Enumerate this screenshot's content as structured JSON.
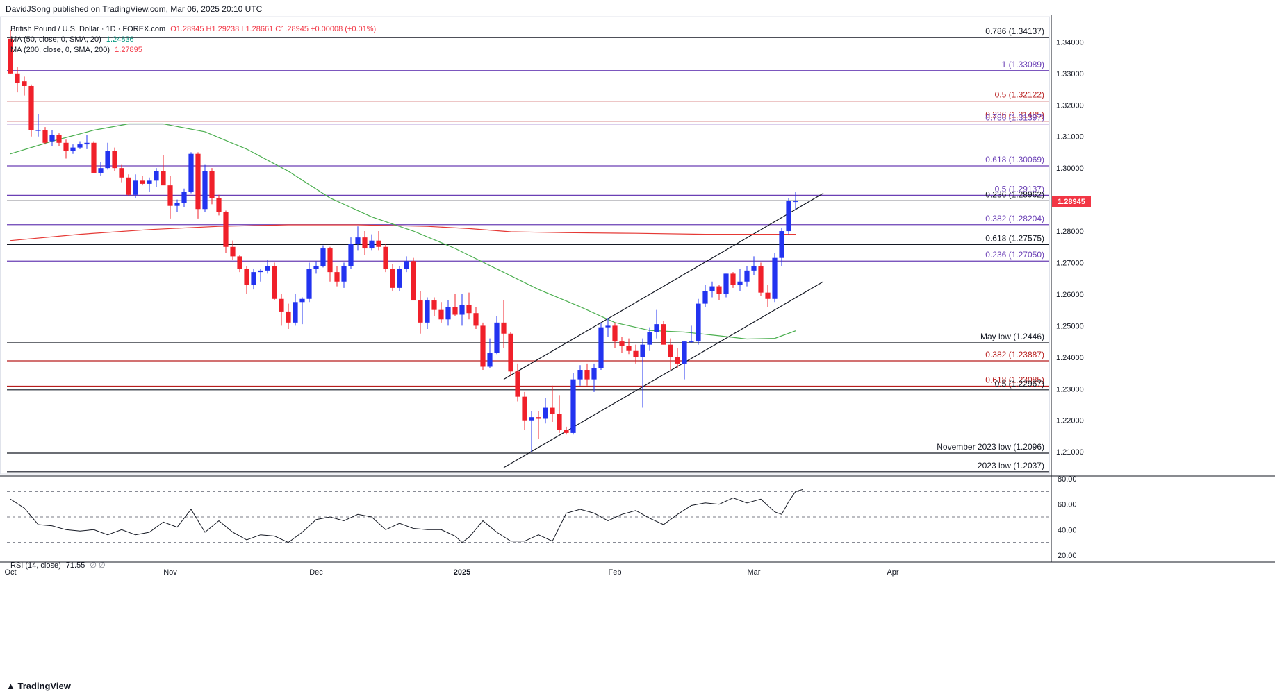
{
  "header": {
    "publisher": "DavidJSong published on TradingView.com, Mar 06, 2025 20:10 UTC"
  },
  "legend": {
    "symbol": "British Pound / U.S. Dollar · 1D · FOREX.com",
    "ohlc": "O1.28945 H1.29238 L1.28661 C1.28945 +0.00008 (+0.01%)",
    "ma50_label": "MA (50, close, 0, SMA, 20)",
    "ma50_value": "1.24836",
    "ma200_label": "MA (200, close, 0, SMA, 200)",
    "ma200_value": "1.27895",
    "rsi_label": "RSI (14, close)",
    "rsi_value": "71.55",
    "rsi_extra": "∅ ∅"
  },
  "colors": {
    "up": "#2233f0",
    "down": "#f0202a",
    "ma50": "#4caf50",
    "ma200": "#e53935",
    "level_black": "#131722",
    "level_purple": "#6a3fb5",
    "level_red": "#b71c1c",
    "price_tag": "#f23645"
  },
  "footer": {
    "brand": "TradingView"
  },
  "chart_data": {
    "type": "candlestick",
    "title": "",
    "price_axis": {
      "ylim": [
        1.203,
        1.348
      ],
      "ticks": [
        "1.34000",
        "1.33000",
        "1.32000",
        "1.31000",
        "1.30000",
        "1.29000",
        "1.28000",
        "1.27000",
        "1.26000",
        "1.25000",
        "1.24000",
        "1.23000",
        "1.22000",
        "1.21000"
      ],
      "current_price": "1.28945"
    },
    "time_axis": {
      "labels": [
        {
          "label": "Oct",
          "index": 0
        },
        {
          "label": "Nov",
          "index": 23
        },
        {
          "label": "Dec",
          "index": 44
        },
        {
          "label": "2025",
          "index": 65
        },
        {
          "label": "Feb",
          "index": 87
        },
        {
          "label": "Mar",
          "index": 107
        },
        {
          "label": "Apr",
          "index": 127
        }
      ],
      "total_bars_span": 150
    },
    "levels": [
      {
        "label": "0.786 (1.34137)",
        "value": 1.34137,
        "color": "black"
      },
      {
        "label": "1 (1.33089)",
        "value": 1.33089,
        "color": "purple"
      },
      {
        "label": "0.5 (1.32122)",
        "value": 1.32122,
        "color": "red"
      },
      {
        "label": "0.236 (1.31485)",
        "value": 1.31485,
        "color": "red"
      },
      {
        "label": "0.786 (1.31397)",
        "value": 1.31397,
        "color": "purple"
      },
      {
        "label": "0.618 (1.30069)",
        "value": 1.30069,
        "color": "purple"
      },
      {
        "label": "0.5 (1.29137)",
        "value": 1.29137,
        "color": "purple"
      },
      {
        "label": "0.236 (1.28962)",
        "value": 1.28962,
        "color": "black"
      },
      {
        "label": "0.382 (1.28204)",
        "value": 1.28204,
        "color": "purple"
      },
      {
        "label": "0.618 (1.27575)",
        "value": 1.27575,
        "color": "black"
      },
      {
        "label": "0.236 (1.27050)",
        "value": 1.2705,
        "color": "purple"
      },
      {
        "label": "May low (1.2446)",
        "value": 1.2446,
        "color": "black"
      },
      {
        "label": "0.382 (1.23887)",
        "value": 1.23887,
        "color": "red"
      },
      {
        "label": "0.618 (1.23085)",
        "value": 1.23085,
        "color": "red"
      },
      {
        "label": "0.5 (1.22967)",
        "value": 1.22967,
        "color": "black"
      },
      {
        "label": "November 2023 low (1.2096)",
        "value": 1.2096,
        "color": "black"
      },
      {
        "label": "2023 low (1.2037)",
        "value": 1.2037,
        "color": "black"
      }
    ],
    "candles": [
      [
        1.341,
        1.3438,
        1.3298,
        1.33
      ],
      [
        1.33,
        1.332,
        1.324,
        1.327
      ],
      [
        1.3275,
        1.329,
        1.323,
        1.326
      ],
      [
        1.326,
        1.3265,
        1.31,
        1.312
      ],
      [
        1.312,
        1.317,
        1.31,
        1.312
      ],
      [
        1.312,
        1.313,
        1.3075,
        1.308
      ],
      [
        1.3085,
        1.312,
        1.307,
        1.3105
      ],
      [
        1.3105,
        1.311,
        1.307,
        1.308
      ],
      [
        1.308,
        1.309,
        1.303,
        1.3055
      ],
      [
        1.3055,
        1.3075,
        1.3045,
        1.3065
      ],
      [
        1.3065,
        1.3085,
        1.306,
        1.3075
      ],
      [
        1.3075,
        1.3105,
        1.306,
        1.308
      ],
      [
        1.308,
        1.3085,
        1.299,
        1.2985
      ],
      [
        1.2985,
        1.302,
        1.2975,
        1.3
      ],
      [
        1.3,
        1.308,
        1.2995,
        1.3055
      ],
      [
        1.3055,
        1.3065,
        1.299,
        1.3
      ],
      [
        1.3,
        1.301,
        1.2955,
        1.297
      ],
      [
        1.297,
        1.298,
        1.291,
        1.2915
      ],
      [
        1.2915,
        1.298,
        1.2905,
        1.296
      ],
      [
        1.296,
        1.2975,
        1.2945,
        1.295
      ],
      [
        1.295,
        1.297,
        1.2925,
        1.296
      ],
      [
        1.296,
        1.3,
        1.294,
        1.299
      ],
      [
        1.299,
        1.304,
        1.295,
        1.2945
      ],
      [
        1.2945,
        1.2975,
        1.284,
        1.288
      ],
      [
        1.288,
        1.29,
        1.286,
        1.289
      ],
      [
        1.289,
        1.2935,
        1.2875,
        1.2925
      ],
      [
        1.2925,
        1.305,
        1.292,
        1.3045
      ],
      [
        1.3045,
        1.305,
        1.284,
        1.287
      ],
      [
        1.287,
        1.301,
        1.286,
        1.299
      ],
      [
        1.299,
        1.3,
        1.2885,
        1.2905
      ],
      [
        1.2905,
        1.2915,
        1.285,
        1.286
      ],
      [
        1.286,
        1.2865,
        1.273,
        1.275
      ],
      [
        1.275,
        1.277,
        1.271,
        1.272
      ],
      [
        1.272,
        1.2725,
        1.267,
        1.268
      ],
      [
        1.268,
        1.269,
        1.26,
        1.263
      ],
      [
        1.263,
        1.268,
        1.2615,
        1.267
      ],
      [
        1.267,
        1.268,
        1.264,
        1.2675
      ],
      [
        1.2675,
        1.271,
        1.2665,
        1.269
      ],
      [
        1.269,
        1.27,
        1.258,
        1.2585
      ],
      [
        1.2585,
        1.26,
        1.25,
        1.2545
      ],
      [
        1.2545,
        1.257,
        1.249,
        1.251
      ],
      [
        1.251,
        1.26,
        1.25,
        1.2575
      ],
      [
        1.2575,
        1.259,
        1.2505,
        1.2585
      ],
      [
        1.2585,
        1.27,
        1.2575,
        1.268
      ],
      [
        1.268,
        1.2705,
        1.2665,
        1.269
      ],
      [
        1.269,
        1.2755,
        1.2685,
        1.2745
      ],
      [
        1.2745,
        1.275,
        1.264,
        1.267
      ],
      [
        1.267,
        1.269,
        1.2625,
        1.264
      ],
      [
        1.264,
        1.27,
        1.262,
        1.269
      ],
      [
        1.269,
        1.278,
        1.268,
        1.276
      ],
      [
        1.276,
        1.2815,
        1.274,
        1.278
      ],
      [
        1.278,
        1.28,
        1.2725,
        1.2745
      ],
      [
        1.2745,
        1.279,
        1.274,
        1.277
      ],
      [
        1.277,
        1.28,
        1.274,
        1.275
      ],
      [
        1.275,
        1.276,
        1.267,
        1.268
      ],
      [
        1.268,
        1.2695,
        1.261,
        1.262
      ],
      [
        1.262,
        1.269,
        1.261,
        1.268
      ],
      [
        1.268,
        1.272,
        1.267,
        1.2705
      ],
      [
        1.2705,
        1.2715,
        1.258,
        1.258
      ],
      [
        1.258,
        1.261,
        1.2475,
        1.251
      ],
      [
        1.251,
        1.259,
        1.249,
        1.258
      ],
      [
        1.258,
        1.259,
        1.253,
        1.255
      ],
      [
        1.255,
        1.2575,
        1.251,
        1.252
      ],
      [
        1.252,
        1.258,
        1.25,
        1.256
      ],
      [
        1.256,
        1.26,
        1.253,
        1.2535
      ],
      [
        1.2535,
        1.26,
        1.25,
        1.2565
      ],
      [
        1.2565,
        1.2605,
        1.252,
        1.254
      ],
      [
        1.254,
        1.256,
        1.249,
        1.25
      ],
      [
        1.25,
        1.251,
        1.236,
        1.237
      ],
      [
        1.237,
        1.246,
        1.2365,
        1.2415
      ],
      [
        1.2415,
        1.253,
        1.241,
        1.251
      ],
      [
        1.251,
        1.258,
        1.243,
        1.2475
      ],
      [
        1.2475,
        1.248,
        1.234,
        1.2355
      ],
      [
        1.2355,
        1.238,
        1.226,
        1.2275
      ],
      [
        1.2275,
        1.229,
        1.217,
        1.22
      ],
      [
        1.22,
        1.223,
        1.21,
        1.221
      ],
      [
        1.221,
        1.223,
        1.214,
        1.2205
      ],
      [
        1.2205,
        1.227,
        1.219,
        1.224
      ],
      [
        1.224,
        1.231,
        1.2195,
        1.222
      ],
      [
        1.222,
        1.228,
        1.216,
        1.217
      ],
      [
        1.217,
        1.218,
        1.2155,
        1.216
      ],
      [
        1.216,
        1.235,
        1.2155,
        1.233
      ],
      [
        1.233,
        1.2375,
        1.231,
        1.236
      ],
      [
        1.236,
        1.238,
        1.231,
        1.233
      ],
      [
        1.233,
        1.238,
        1.229,
        1.2365
      ],
      [
        1.2365,
        1.251,
        1.236,
        1.2495
      ],
      [
        1.2495,
        1.2525,
        1.2465,
        1.25
      ],
      [
        1.25,
        1.251,
        1.243,
        1.245
      ],
      [
        1.245,
        1.2465,
        1.2415,
        1.2435
      ],
      [
        1.2435,
        1.246,
        1.241,
        1.242
      ],
      [
        1.242,
        1.244,
        1.238,
        1.24
      ],
      [
        1.24,
        1.246,
        1.224,
        1.244
      ],
      [
        1.244,
        1.2495,
        1.242,
        1.248
      ],
      [
        1.248,
        1.255,
        1.246,
        1.2505
      ],
      [
        1.2505,
        1.2515,
        1.244,
        1.244
      ],
      [
        1.244,
        1.246,
        1.236,
        1.24
      ],
      [
        1.24,
        1.243,
        1.2365,
        1.238
      ],
      [
        1.238,
        1.245,
        1.233,
        1.245
      ],
      [
        1.245,
        1.25,
        1.2445,
        1.245
      ],
      [
        1.245,
        1.2585,
        1.244,
        1.257
      ],
      [
        1.257,
        1.263,
        1.256,
        1.261
      ],
      [
        1.261,
        1.264,
        1.259,
        1.2625
      ],
      [
        1.2625,
        1.263,
        1.258,
        1.26
      ],
      [
        1.26,
        1.2665,
        1.259,
        1.2665
      ],
      [
        1.2665,
        1.267,
        1.262,
        1.263
      ],
      [
        1.263,
        1.268,
        1.261,
        1.264
      ],
      [
        1.264,
        1.269,
        1.2625,
        1.2675
      ],
      [
        1.2675,
        1.272,
        1.266,
        1.269
      ],
      [
        1.269,
        1.27,
        1.2595,
        1.2605
      ],
      [
        1.2605,
        1.263,
        1.256,
        1.2585
      ],
      [
        1.2585,
        1.273,
        1.2575,
        1.2715
      ],
      [
        1.2715,
        1.281,
        1.269,
        1.28
      ],
      [
        1.28,
        1.2905,
        1.279,
        1.2895
      ],
      [
        1.28945,
        1.29238,
        1.28661,
        1.28945
      ]
    ],
    "ma50": [
      [
        0,
        1.3045
      ],
      [
        6,
        1.3085
      ],
      [
        12,
        1.312
      ],
      [
        17,
        1.314
      ],
      [
        22,
        1.314
      ],
      [
        28,
        1.3115
      ],
      [
        34,
        1.306
      ],
      [
        40,
        1.299
      ],
      [
        46,
        1.2905
      ],
      [
        52,
        1.2845
      ],
      [
        58,
        1.28
      ],
      [
        64,
        1.2745
      ],
      [
        70,
        1.268
      ],
      [
        76,
        1.2615
      ],
      [
        82,
        1.256
      ],
      [
        87,
        1.251
      ],
      [
        92,
        1.2485
      ],
      [
        97,
        1.248
      ],
      [
        102,
        1.2468
      ],
      [
        106,
        1.2458
      ],
      [
        110,
        1.246
      ],
      [
        113,
        1.2484
      ]
    ],
    "ma200": [
      [
        0,
        1.277
      ],
      [
        10,
        1.279
      ],
      [
        20,
        1.2805
      ],
      [
        30,
        1.2815
      ],
      [
        40,
        1.282
      ],
      [
        50,
        1.282
      ],
      [
        60,
        1.2815
      ],
      [
        66,
        1.2808
      ],
      [
        72,
        1.2798
      ],
      [
        80,
        1.2795
      ],
      [
        90,
        1.2793
      ],
      [
        100,
        1.279
      ],
      [
        113,
        1.279
      ]
    ],
    "trendlines": [
      {
        "from": [
          71,
          1.233
        ],
        "to": [
          117,
          1.292
        ]
      },
      {
        "from": [
          71,
          1.205
        ],
        "to": [
          117,
          1.264
        ]
      }
    ],
    "rsi": {
      "ylim": [
        20,
        80
      ],
      "ticks": [
        "80.00",
        "60.00",
        "40.00",
        "20.00"
      ],
      "guides": [
        70,
        50,
        30
      ],
      "values": [
        [
          0,
          64
        ],
        [
          2,
          57
        ],
        [
          4,
          44
        ],
        [
          6,
          43
        ],
        [
          8,
          40
        ],
        [
          10,
          39
        ],
        [
          12,
          40
        ],
        [
          14,
          36
        ],
        [
          16,
          40
        ],
        [
          18,
          36
        ],
        [
          20,
          38
        ],
        [
          22,
          46
        ],
        [
          24,
          42
        ],
        [
          26,
          56
        ],
        [
          28,
          38
        ],
        [
          30,
          47
        ],
        [
          32,
          38
        ],
        [
          34,
          32
        ],
        [
          36,
          36
        ],
        [
          38,
          35
        ],
        [
          40,
          30
        ],
        [
          42,
          38
        ],
        [
          44,
          48
        ],
        [
          46,
          50
        ],
        [
          48,
          47
        ],
        [
          50,
          52
        ],
        [
          52,
          50
        ],
        [
          54,
          40
        ],
        [
          56,
          45
        ],
        [
          58,
          41
        ],
        [
          60,
          40
        ],
        [
          62,
          40
        ],
        [
          64,
          35
        ],
        [
          65,
          30
        ],
        [
          66,
          34
        ],
        [
          68,
          47
        ],
        [
          70,
          38
        ],
        [
          72,
          31
        ],
        [
          74,
          31
        ],
        [
          76,
          36
        ],
        [
          78,
          31
        ],
        [
          80,
          53
        ],
        [
          82,
          56
        ],
        [
          84,
          53
        ],
        [
          86,
          47
        ],
        [
          88,
          52
        ],
        [
          90,
          55
        ],
        [
          92,
          49
        ],
        [
          94,
          44
        ],
        [
          96,
          52
        ],
        [
          98,
          59
        ],
        [
          100,
          61
        ],
        [
          102,
          60
        ],
        [
          104,
          65
        ],
        [
          106,
          61
        ],
        [
          108,
          64
        ],
        [
          110,
          54
        ],
        [
          111,
          52
        ],
        [
          112,
          62
        ],
        [
          113,
          70
        ],
        [
          114,
          71.55
        ]
      ]
    }
  }
}
